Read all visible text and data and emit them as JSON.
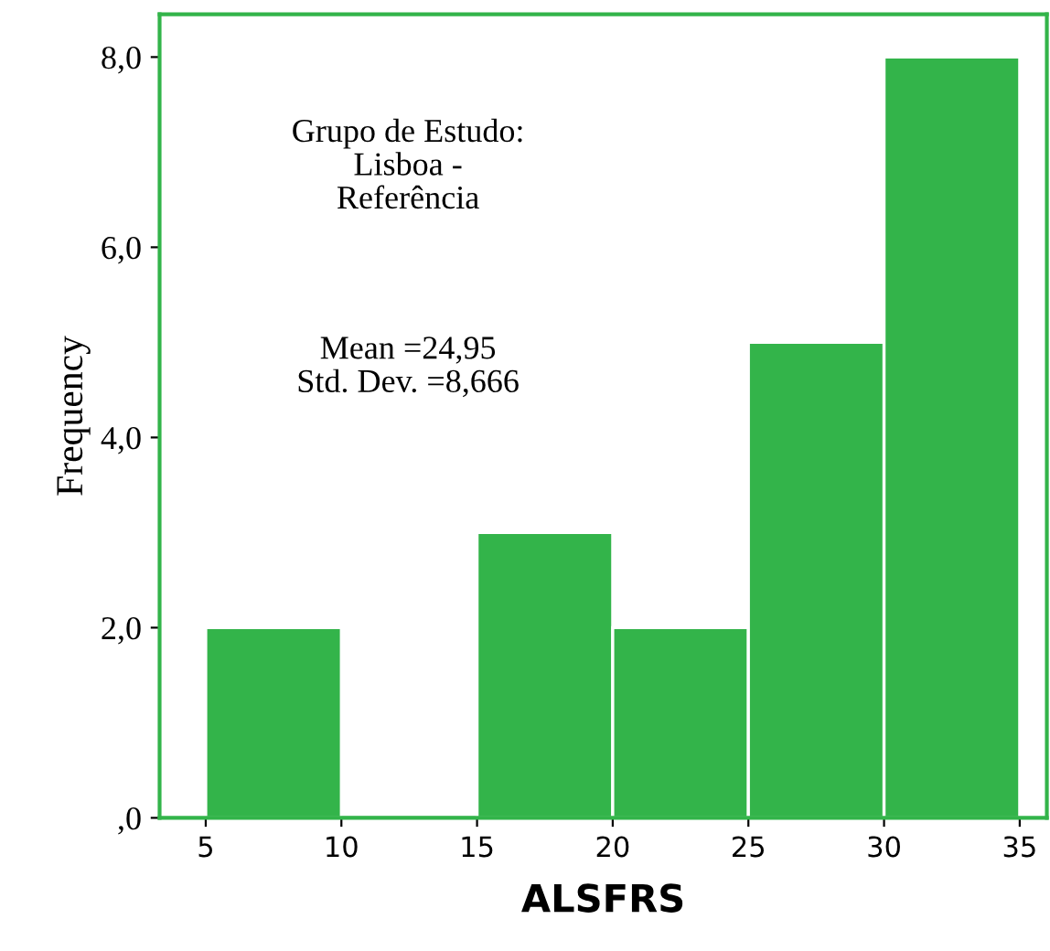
{
  "chart_data": {
    "type": "histogram",
    "xlabel": "ALSFRS",
    "ylabel": "Frequency",
    "bins": [
      5,
      10,
      15,
      20,
      25,
      30,
      35
    ],
    "values": [
      2,
      0,
      3,
      2,
      5,
      8
    ],
    "color": "#33b44a",
    "xlim": [
      3.3,
      36
    ],
    "ylim": [
      0,
      8.45
    ],
    "xticks": [
      5,
      10,
      15,
      20,
      25,
      30,
      35
    ],
    "yticks": [
      {
        "value": 0,
        "label": ",0"
      },
      {
        "value": 2,
        "label": "2,0"
      },
      {
        "value": 4,
        "label": "4,0"
      },
      {
        "value": 6,
        "label": "6,0"
      },
      {
        "value": 8,
        "label": "8,0"
      }
    ],
    "annotations": [
      "Grupo de Estudo:\nLisboa -\nReferência",
      "Mean =24,95\nStd. Dev. =8,666"
    ],
    "grid": false
  }
}
